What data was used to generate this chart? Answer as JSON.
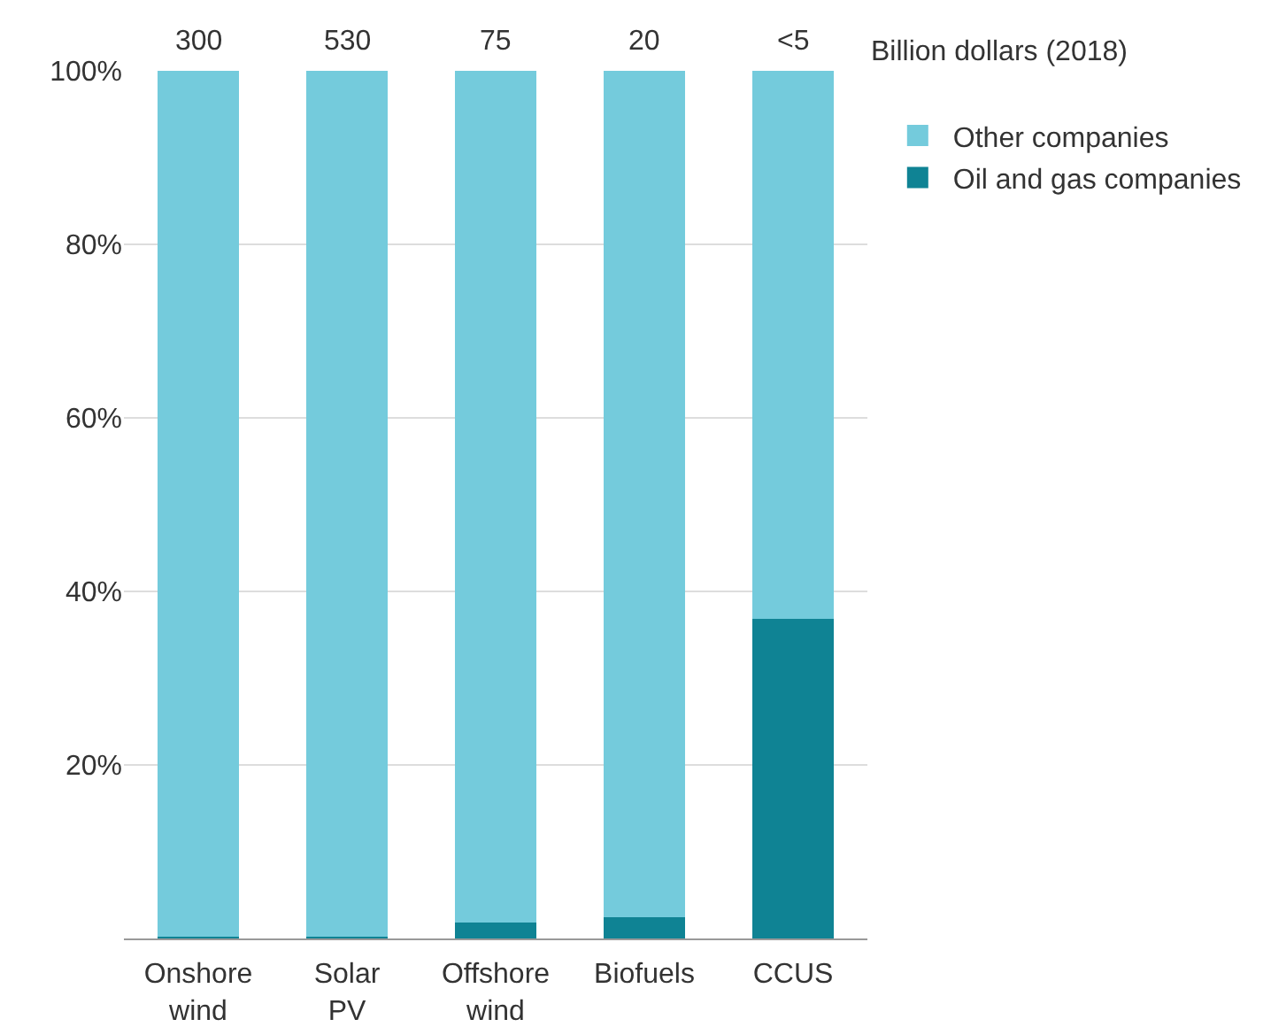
{
  "chart_data": {
    "type": "bar",
    "stacked": true,
    "categories": [
      "Onshore wind",
      "Solar PV",
      "Offshore wind",
      "Biofuels",
      "CCUS"
    ],
    "series": [
      {
        "name": "Oil and gas companies",
        "color": "#0f8394",
        "values": [
          0.2,
          0.2,
          1.8,
          2.4,
          36.8
        ]
      },
      {
        "name": "Other companies",
        "color": "#74cbdc",
        "values": [
          99.8,
          99.8,
          98.2,
          97.6,
          63.2
        ]
      }
    ],
    "ylim": [
      0,
      100
    ],
    "yticks": [
      {
        "value": 20,
        "label": "20%"
      },
      {
        "value": 40,
        "label": "40%"
      },
      {
        "value": 60,
        "label": "60%"
      },
      {
        "value": 80,
        "label": "80%"
      },
      {
        "value": 100,
        "label": "100%"
      }
    ],
    "grid": "y",
    "legend": "top right",
    "annotations": [
      {
        "text": "300",
        "x": "Onshore wind",
        "y": 100
      },
      {
        "text": "530",
        "x": "Solar PV",
        "y": 100
      },
      {
        "text": "75",
        "x": "Offshore wind",
        "y": 100
      },
      {
        "text": "20",
        "x": "Biofuels",
        "y": 100
      },
      {
        "text": "<5",
        "x": "CCUS",
        "y": 100
      },
      "Billion dollars (2018)"
    ]
  }
}
